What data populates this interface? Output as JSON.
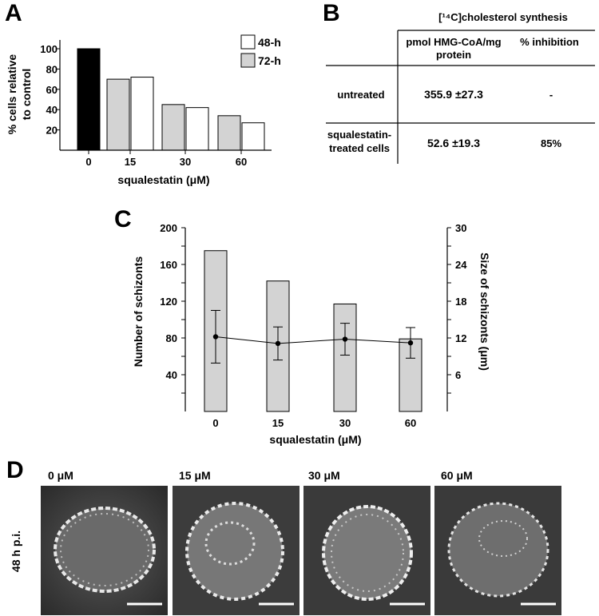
{
  "panels": {
    "A": "A",
    "B": "B",
    "C": "C",
    "D": "D"
  },
  "chart_data": [
    {
      "panel": "A",
      "type": "bar",
      "categories": [
        "0",
        "15",
        "30",
        "60"
      ],
      "series": [
        {
          "name": "48-h",
          "color": "#ffffff",
          "values": [
            100,
            72,
            42,
            27
          ]
        },
        {
          "name": "72-h",
          "color": "#d3d3d3",
          "values": [
            null,
            70,
            45,
            34
          ]
        }
      ],
      "control_color": "#000000",
      "ylabel_line1": "% cells relative",
      "ylabel_line2": "to control",
      "xlabel": "squalestatin (μM)",
      "yticks": [
        "20",
        "40",
        "60",
        "80",
        "100"
      ],
      "ylim": [
        0,
        100
      ],
      "legend_position": "top-right"
    },
    {
      "panel": "C",
      "type": "bar",
      "categories": [
        "0",
        "15",
        "30",
        "60"
      ],
      "series": [
        {
          "name": "Number of schizonts",
          "axis": "left",
          "type": "bar",
          "color": "#d3d3d3",
          "values": [
            175,
            142,
            117,
            79
          ]
        },
        {
          "name": "Size of schizonts",
          "axis": "right",
          "type": "line",
          "values": [
            12.2,
            11.1,
            11.8,
            11.2
          ],
          "errors": [
            4.3,
            2.7,
            2.6,
            2.5
          ]
        }
      ],
      "ylabel_left": "Number of schizonts",
      "ylabel_right": "Size of schizonts (μm)",
      "xlabel": "squalestatin (μM)",
      "yticks_left": [
        "40",
        "80",
        "120",
        "160",
        "200"
      ],
      "yticks_right": [
        "6",
        "12",
        "18",
        "24",
        "30"
      ],
      "ylim_left": [
        0,
        200
      ],
      "ylim_right": [
        0,
        30
      ]
    }
  ],
  "table_B": {
    "header_main": "[¹⁴C]cholesterol synthesis",
    "col1_line1": "pmol HMG-CoA/mg",
    "col1_line2": "protein",
    "col2": "% inhibition",
    "rows": [
      {
        "label_line1": "untreated",
        "label_line2": "",
        "value": "355.9 ±27.3",
        "inhibition": "-"
      },
      {
        "label_line1": "squalestatin-",
        "label_line2": "treated cells",
        "value": "52.6 ±19.3",
        "inhibition": "85%"
      }
    ]
  },
  "panel_D": {
    "row_label": "48 h p.i.",
    "conditions": [
      "0 μM",
      "15 μM",
      "30 μM",
      "60 μM"
    ]
  }
}
